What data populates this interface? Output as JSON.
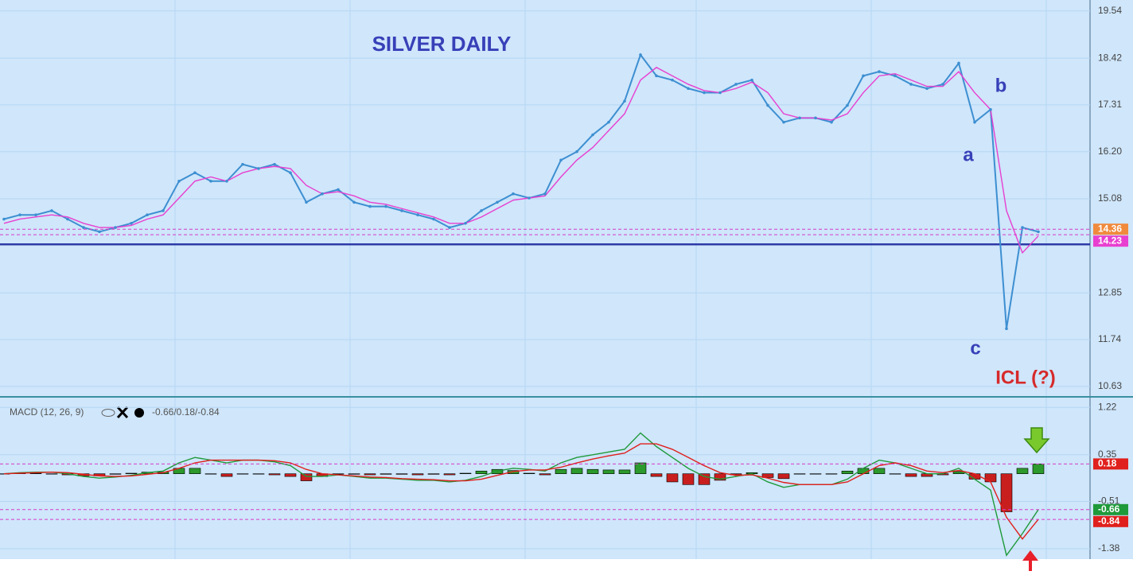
{
  "chart_data": [
    {
      "type": "line",
      "title": "SILVER DAILY",
      "series": [
        {
          "name": "Price",
          "color": "#3d8fd1",
          "values": [
            14.6,
            14.7,
            14.7,
            14.8,
            14.6,
            14.4,
            14.3,
            14.4,
            14.5,
            14.7,
            14.8,
            15.5,
            15.7,
            15.5,
            15.5,
            15.9,
            15.8,
            15.9,
            15.7,
            15.0,
            15.2,
            15.3,
            15.0,
            14.9,
            14.9,
            14.8,
            14.7,
            14.6,
            14.4,
            14.5,
            14.8,
            15.0,
            15.2,
            15.1,
            15.2,
            16.0,
            16.2,
            16.6,
            16.9,
            17.4,
            18.5,
            18.0,
            17.9,
            17.7,
            17.6,
            17.6,
            17.8,
            17.9,
            17.3,
            16.9,
            17.0,
            17.0,
            16.9,
            17.3,
            18.0,
            18.1,
            18.0,
            17.8,
            17.7,
            17.8,
            18.3,
            16.9,
            17.2,
            12.0,
            14.4,
            14.3
          ]
        },
        {
          "name": "MA",
          "color": "#e83fd0",
          "values": [
            14.5,
            14.6,
            14.65,
            14.7,
            14.65,
            14.5,
            14.4,
            14.4,
            14.45,
            14.6,
            14.7,
            15.1,
            15.5,
            15.6,
            15.5,
            15.7,
            15.8,
            15.85,
            15.8,
            15.4,
            15.2,
            15.25,
            15.15,
            15.0,
            14.95,
            14.85,
            14.75,
            14.65,
            14.5,
            14.5,
            14.65,
            14.85,
            15.05,
            15.1,
            15.15,
            15.6,
            16.0,
            16.3,
            16.7,
            17.1,
            17.9,
            18.2,
            18.0,
            17.8,
            17.65,
            17.6,
            17.7,
            17.85,
            17.6,
            17.1,
            17.0,
            17.0,
            16.95,
            17.1,
            17.6,
            18.0,
            18.05,
            17.9,
            17.75,
            17.75,
            18.1,
            17.6,
            17.2,
            14.8,
            13.8,
            14.2
          ]
        }
      ],
      "ylim": [
        10.4,
        19.8
      ],
      "yticks": [
        10.63,
        11.74,
        12.85,
        15.08,
        {
          "value": 16.2,
          "label": "16.20"
        },
        17.31,
        18.42,
        19.54
      ],
      "grid": true,
      "levels": [
        {
          "value": 14.36,
          "color": "#f08a3c"
        },
        {
          "value": 14.23,
          "color": "#e83fd0"
        }
      ],
      "support": 14.0,
      "annotations": [
        "a",
        "b",
        "c",
        "ICL (?)"
      ]
    },
    {
      "type": "macd",
      "title": "MACD (12, 26, 9)",
      "subtitle": "-0.66/0.18/-0.84",
      "series": [
        {
          "name": "MACD",
          "color": "#1f9a3a",
          "values": [
            0.0,
            0.02,
            0.03,
            0.03,
            0.0,
            -0.05,
            -0.08,
            -0.06,
            -0.03,
            0.02,
            0.05,
            0.2,
            0.3,
            0.25,
            0.2,
            0.25,
            0.25,
            0.22,
            0.15,
            -0.05,
            -0.05,
            -0.02,
            -0.05,
            -0.08,
            -0.08,
            -0.1,
            -0.12,
            -0.12,
            -0.15,
            -0.12,
            -0.05,
            0.05,
            0.1,
            0.08,
            0.05,
            0.2,
            0.3,
            0.35,
            0.4,
            0.45,
            0.75,
            0.5,
            0.3,
            0.1,
            -0.05,
            -0.1,
            -0.05,
            0.0,
            -0.15,
            -0.25,
            -0.2,
            -0.2,
            -0.2,
            -0.1,
            0.1,
            0.25,
            0.2,
            0.1,
            0.0,
            0.0,
            0.1,
            -0.1,
            -0.3,
            -1.5,
            -1.1,
            -0.66
          ]
        },
        {
          "name": "Signal",
          "color": "#e0201c",
          "values": [
            0.0,
            0.01,
            0.02,
            0.03,
            0.02,
            -0.01,
            -0.04,
            -0.05,
            -0.04,
            -0.01,
            0.02,
            0.1,
            0.2,
            0.25,
            0.25,
            0.25,
            0.25,
            0.24,
            0.2,
            0.08,
            0.0,
            -0.02,
            -0.04,
            -0.06,
            -0.07,
            -0.09,
            -0.1,
            -0.11,
            -0.13,
            -0.13,
            -0.1,
            -0.03,
            0.04,
            0.07,
            0.07,
            0.12,
            0.2,
            0.27,
            0.33,
            0.38,
            0.55,
            0.55,
            0.45,
            0.3,
            0.15,
            0.02,
            -0.03,
            -0.02,
            -0.08,
            -0.16,
            -0.2,
            -0.2,
            -0.2,
            -0.15,
            0.0,
            0.15,
            0.2,
            0.15,
            0.05,
            0.02,
            0.06,
            0.0,
            -0.15,
            -0.8,
            -1.2,
            -0.84
          ]
        },
        {
          "name": "Histogram",
          "color": "#2c9a2c",
          "values": [
            0,
            0.01,
            0.01,
            0,
            -0.02,
            -0.04,
            -0.04,
            -0.01,
            0.01,
            0.03,
            0.03,
            0.1,
            0.1,
            0,
            -0.05,
            0,
            0,
            -0.02,
            -0.05,
            -0.13,
            -0.05,
            0,
            -0.01,
            -0.02,
            -0.01,
            -0.01,
            -0.02,
            -0.01,
            -0.02,
            0.01,
            0.05,
            0.08,
            0.06,
            0.01,
            -0.02,
            0.08,
            0.1,
            0.08,
            0.07,
            0.07,
            0.2,
            -0.05,
            -0.15,
            -0.2,
            -0.2,
            -0.12,
            -0.02,
            0.02,
            -0.07,
            -0.09,
            0,
            0,
            0,
            0.05,
            0.1,
            0.1,
            0,
            -0.05,
            -0.05,
            -0.02,
            0.04,
            -0.1,
            -0.15,
            -0.7,
            0.1,
            0.18
          ]
        }
      ],
      "ylim": [
        -1.57,
        1.4
      ],
      "yticks": [
        -1.38,
        -0.51,
        0.35,
        1.22
      ],
      "grid": true,
      "levels": [
        {
          "value": 0.18,
          "color": "#e0201c"
        },
        {
          "value": -0.66,
          "color": "#1f9a3a"
        },
        {
          "value": -0.84,
          "color": "#e0201c"
        }
      ]
    }
  ]
}
